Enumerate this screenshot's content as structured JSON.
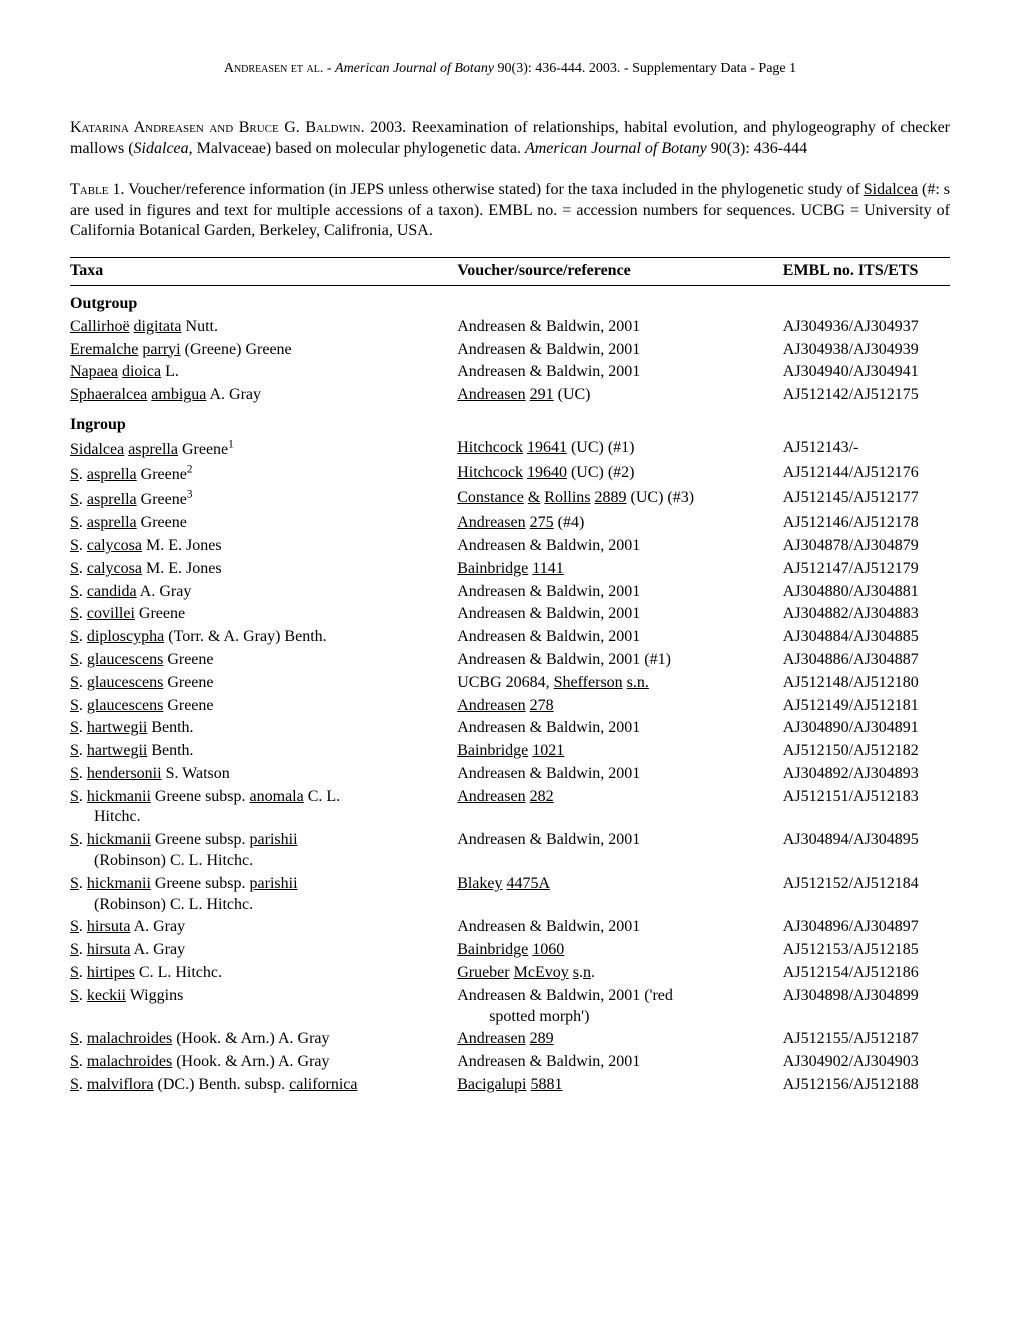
{
  "runningHeader": {
    "authors": "Andreasen et al.",
    "separator": " - ",
    "journal": "American Journal of Botany",
    "volume": " 90(3): 436-444. 2003. - Supplementary Data - Page 1"
  },
  "citation": {
    "authors": "Katarina Andreasen and Bruce G. Baldwin",
    "year": ".  2003.  Reexamination of relationships, habital evolution, and phylogeography of checker mallows (",
    "genus": "Sidalcea",
    "text2": ", Malvaceae) based on molecular phylogenetic data. ",
    "journal": "American Journal of Botany",
    "volume": " 90(3): 436-444"
  },
  "tableCaption": {
    "label": "Table",
    "text1": " 1. Voucher/reference information (in JEPS unless otherwise stated) for the taxa included in the phylogenetic study of ",
    "sidalcea": "Sidalcea",
    "text2": " (#: s are used in figures and text for multiple accessions of a taxon). EMBL no. = accession numbers for sequences. UCBG = University of California Botanical Garden, Berkeley, Califronia, USA."
  },
  "headers": {
    "col1": "Taxa",
    "col2": "Voucher/source/reference",
    "col3": "EMBL no. ITS/ETS"
  },
  "sections": {
    "outgroup": "Outgroup",
    "ingroup": "Ingroup"
  },
  "rows": [
    {
      "taxa_parts": [
        {
          "u": true,
          "t": "Callirhoë"
        },
        {
          "t": " "
        },
        {
          "u": true,
          "t": "digitata"
        },
        {
          "t": " Nutt."
        }
      ],
      "voucher": "Andreasen & Baldwin, 2001",
      "embl": "AJ304936/AJ304937"
    },
    {
      "taxa_parts": [
        {
          "u": true,
          "t": "Eremalche"
        },
        {
          "t": " "
        },
        {
          "u": true,
          "t": "parryi"
        },
        {
          "t": " (Greene) Greene"
        }
      ],
      "voucher": "Andreasen & Baldwin, 2001",
      "embl": "AJ304938/AJ304939"
    },
    {
      "taxa_parts": [
        {
          "u": true,
          "t": "Napaea"
        },
        {
          "t": " "
        },
        {
          "u": true,
          "t": "dioica"
        },
        {
          "t": " L."
        }
      ],
      "voucher": "Andreasen & Baldwin, 2001",
      "embl": "AJ304940/AJ304941"
    },
    {
      "taxa_parts": [
        {
          "u": true,
          "t": "Sphaeralcea"
        },
        {
          "t": " "
        },
        {
          "u": true,
          "t": "ambigua"
        },
        {
          "t": " A. Gray"
        }
      ],
      "voucher_parts": [
        {
          "u": true,
          "t": "Andreasen"
        },
        {
          "t": " "
        },
        {
          "u": true,
          "t": "291"
        },
        {
          "t": " (UC)"
        }
      ],
      "embl": "AJ512142/AJ512175"
    }
  ],
  "ingroupRows": [
    {
      "taxa_parts": [
        {
          "u": true,
          "t": "Sidalcea"
        },
        {
          "t": " "
        },
        {
          "u": true,
          "t": "asprella"
        },
        {
          "t": " Greene"
        },
        {
          "sup": "1"
        }
      ],
      "voucher_parts": [
        {
          "u": true,
          "t": "Hitchcock"
        },
        {
          "t": " "
        },
        {
          "u": true,
          "t": "19641"
        },
        {
          "t": " (UC) (#1)"
        }
      ],
      "embl": "AJ512143/-"
    },
    {
      "taxa_parts": [
        {
          "u": true,
          "t": "S"
        },
        {
          "t": ". "
        },
        {
          "u": true,
          "t": "asprella"
        },
        {
          "t": " Greene"
        },
        {
          "sup": "2"
        }
      ],
      "voucher_parts": [
        {
          "u": true,
          "t": "Hitchcock"
        },
        {
          "t": " "
        },
        {
          "u": true,
          "t": "19640"
        },
        {
          "t": " (UC) (#2)"
        }
      ],
      "embl": "AJ512144/AJ512176"
    },
    {
      "taxa_parts": [
        {
          "u": true,
          "t": "S"
        },
        {
          "t": ". "
        },
        {
          "u": true,
          "t": "asprella"
        },
        {
          "t": " Greene"
        },
        {
          "sup": "3"
        }
      ],
      "voucher_parts": [
        {
          "u": true,
          "t": "Constance"
        },
        {
          "t": " "
        },
        {
          "u": true,
          "t": "&"
        },
        {
          "t": " "
        },
        {
          "u": true,
          "t": "Rollins"
        },
        {
          "t": " "
        },
        {
          "u": true,
          "t": "2889"
        },
        {
          "t": " (UC) (#3)"
        }
      ],
      "embl": "AJ512145/AJ512177"
    },
    {
      "taxa_parts": [
        {
          "u": true,
          "t": "S"
        },
        {
          "t": ". "
        },
        {
          "u": true,
          "t": "asprella"
        },
        {
          "t": " Greene"
        }
      ],
      "voucher_parts": [
        {
          "u": true,
          "t": "Andreasen"
        },
        {
          "t": " "
        },
        {
          "u": true,
          "t": "275"
        },
        {
          "t": " (#4)"
        }
      ],
      "embl": "AJ512146/AJ512178"
    },
    {
      "taxa_parts": [
        {
          "u": true,
          "t": "S"
        },
        {
          "t": ". "
        },
        {
          "u": true,
          "t": "calycosa"
        },
        {
          "t": " M. E. Jones"
        }
      ],
      "voucher": "Andreasen & Baldwin, 2001",
      "embl": "AJ304878/AJ304879"
    },
    {
      "taxa_parts": [
        {
          "u": true,
          "t": "S"
        },
        {
          "t": ". "
        },
        {
          "u": true,
          "t": "calycosa"
        },
        {
          "t": " M. E. Jones"
        }
      ],
      "voucher_parts": [
        {
          "u": true,
          "t": "Bainbridge"
        },
        {
          "t": " "
        },
        {
          "u": true,
          "t": "1141"
        }
      ],
      "embl": "AJ512147/AJ512179"
    },
    {
      "taxa_parts": [
        {
          "u": true,
          "t": "S"
        },
        {
          "t": ". "
        },
        {
          "u": true,
          "t": "candida"
        },
        {
          "t": " A. Gray"
        }
      ],
      "voucher": "Andreasen & Baldwin, 2001",
      "embl": "AJ304880/AJ304881"
    },
    {
      "taxa_parts": [
        {
          "u": true,
          "t": "S"
        },
        {
          "t": ". "
        },
        {
          "u": true,
          "t": "covillei"
        },
        {
          "t": " Greene"
        }
      ],
      "voucher": "Andreasen & Baldwin, 2001",
      "embl": "AJ304882/AJ304883"
    },
    {
      "taxa_parts": [
        {
          "u": true,
          "t": "S"
        },
        {
          "t": ". "
        },
        {
          "u": true,
          "t": "diploscypha"
        },
        {
          "t": " (Torr. & A. Gray) Benth."
        }
      ],
      "voucher": "Andreasen & Baldwin, 2001",
      "embl": "AJ304884/AJ304885"
    },
    {
      "taxa_parts": [
        {
          "u": true,
          "t": "S"
        },
        {
          "t": ". "
        },
        {
          "u": true,
          "t": "glaucescens"
        },
        {
          "t": " Greene"
        }
      ],
      "voucher": "Andreasen & Baldwin, 2001 (#1)",
      "embl": "AJ304886/AJ304887"
    },
    {
      "taxa_parts": [
        {
          "u": true,
          "t": "S"
        },
        {
          "t": ". "
        },
        {
          "u": true,
          "t": "glaucescens"
        },
        {
          "t": " Greene"
        }
      ],
      "voucher_parts": [
        {
          "t": "UCBG 20684, "
        },
        {
          "u": true,
          "t": "Shefferson"
        },
        {
          "t": " "
        },
        {
          "u": true,
          "t": "s.n."
        }
      ],
      "embl": "AJ512148/AJ512180"
    },
    {
      "taxa_parts": [
        {
          "u": true,
          "t": "S"
        },
        {
          "t": ". "
        },
        {
          "u": true,
          "t": "glaucescens"
        },
        {
          "t": " Greene"
        }
      ],
      "voucher_parts": [
        {
          "u": true,
          "t": "Andreasen"
        },
        {
          "t": " "
        },
        {
          "u": true,
          "t": "278"
        }
      ],
      "embl": "AJ512149/AJ512181"
    },
    {
      "taxa_parts": [
        {
          "u": true,
          "t": "S"
        },
        {
          "t": ". "
        },
        {
          "u": true,
          "t": "hartwegii"
        },
        {
          "t": " Benth."
        }
      ],
      "voucher": "Andreasen & Baldwin, 2001",
      "embl": "AJ304890/AJ304891"
    },
    {
      "taxa_parts": [
        {
          "u": true,
          "t": "S"
        },
        {
          "t": ". "
        },
        {
          "u": true,
          "t": "hartwegii"
        },
        {
          "t": " Benth."
        }
      ],
      "voucher_parts": [
        {
          "u": true,
          "t": "Bainbridge"
        },
        {
          "t": " "
        },
        {
          "u": true,
          "t": "1021"
        }
      ],
      "embl": "AJ512150/AJ512182"
    },
    {
      "taxa_parts": [
        {
          "u": true,
          "t": "S"
        },
        {
          "t": ". "
        },
        {
          "u": true,
          "t": "hendersonii"
        },
        {
          "t": " S. Watson"
        }
      ],
      "voucher": "Andreasen & Baldwin, 2001",
      "embl": "AJ304892/AJ304893"
    },
    {
      "taxa_parts": [
        {
          "u": true,
          "t": "S"
        },
        {
          "t": ". "
        },
        {
          "u": true,
          "t": "hickmanii"
        },
        {
          "t": " Greene subsp. "
        },
        {
          "u": true,
          "t": "anomala"
        },
        {
          "t": " C. L."
        }
      ],
      "taxa_cont": "Hitchc.",
      "voucher_parts": [
        {
          "u": true,
          "t": "Andreasen"
        },
        {
          "t": " "
        },
        {
          "u": true,
          "t": "282"
        }
      ],
      "embl": "AJ512151/AJ512183"
    },
    {
      "taxa_parts": [
        {
          "u": true,
          "t": "S"
        },
        {
          "t": ". "
        },
        {
          "u": true,
          "t": "hickmanii"
        },
        {
          "t": " Greene subsp. "
        },
        {
          "u": true,
          "t": "parishii"
        }
      ],
      "taxa_cont": "(Robinson) C. L. Hitchc.",
      "voucher": "Andreasen & Baldwin, 2001",
      "embl": "AJ304894/AJ304895"
    },
    {
      "taxa_parts": [
        {
          "u": true,
          "t": "S"
        },
        {
          "t": ". "
        },
        {
          "u": true,
          "t": "hickmanii"
        },
        {
          "t": " Greene subsp. "
        },
        {
          "u": true,
          "t": "parishii"
        }
      ],
      "taxa_cont": "(Robinson) C. L. Hitchc.",
      "voucher_parts": [
        {
          "u": true,
          "t": "Blakey"
        },
        {
          "t": " "
        },
        {
          "u": true,
          "t": "4475A"
        }
      ],
      "embl": "AJ512152/AJ512184"
    },
    {
      "taxa_parts": [
        {
          "u": true,
          "t": "S"
        },
        {
          "t": ". "
        },
        {
          "u": true,
          "t": "hirsuta"
        },
        {
          "t": " A. Gray"
        }
      ],
      "voucher": "Andreasen & Baldwin, 2001",
      "embl": "AJ304896/AJ304897"
    },
    {
      "taxa_parts": [
        {
          "u": true,
          "t": "S"
        },
        {
          "t": ". "
        },
        {
          "u": true,
          "t": "hirsuta"
        },
        {
          "t": " A. Gray"
        }
      ],
      "voucher_parts": [
        {
          "u": true,
          "t": "Bainbridge"
        },
        {
          "t": " "
        },
        {
          "u": true,
          "t": "1060"
        }
      ],
      "embl": "AJ512153/AJ512185"
    },
    {
      "taxa_parts": [
        {
          "u": true,
          "t": "S"
        },
        {
          "t": ". "
        },
        {
          "u": true,
          "t": "hirtipes"
        },
        {
          "t": " C. L. Hitchc."
        }
      ],
      "voucher_parts": [
        {
          "u": true,
          "t": "Grueber"
        },
        {
          "t": " "
        },
        {
          "u": true,
          "t": "McEvoy"
        },
        {
          "t": " "
        },
        {
          "u": true,
          "t": "s"
        },
        {
          "t": "."
        },
        {
          "u": true,
          "t": "n"
        },
        {
          "t": "."
        }
      ],
      "embl": "AJ512154/AJ512186"
    },
    {
      "taxa_parts": [
        {
          "u": true,
          "t": "S"
        },
        {
          "t": ". "
        },
        {
          "u": true,
          "t": "keckii"
        },
        {
          "t": " Wiggins"
        }
      ],
      "voucher": "Andreasen & Baldwin, 2001 ('red",
      "voucher_cont": "spotted morph')",
      "embl": "AJ304898/AJ304899"
    },
    {
      "taxa_parts": [
        {
          "u": true,
          "t": "S"
        },
        {
          "t": ". "
        },
        {
          "u": true,
          "t": "malachroides"
        },
        {
          "t": " (Hook. & Arn.) A. Gray"
        }
      ],
      "voucher_parts": [
        {
          "u": true,
          "t": "Andreasen"
        },
        {
          "t": " "
        },
        {
          "u": true,
          "t": "289"
        }
      ],
      "embl": "AJ512155/AJ512187"
    },
    {
      "taxa_parts": [
        {
          "u": true,
          "t": "S"
        },
        {
          "t": ". "
        },
        {
          "u": true,
          "t": "malachroides"
        },
        {
          "t": " (Hook. & Arn.) A. Gray"
        }
      ],
      "voucher": "Andreasen & Baldwin, 2001",
      "embl": "AJ304902/AJ304903"
    },
    {
      "taxa_parts": [
        {
          "u": true,
          "t": "S"
        },
        {
          "t": ". "
        },
        {
          "u": true,
          "t": "malviflora"
        },
        {
          "t": " (DC.) Benth. subsp. "
        },
        {
          "u": true,
          "t": "californica"
        }
      ],
      "voucher_parts": [
        {
          "u": true,
          "t": "Bacigalupi"
        },
        {
          "t": " "
        },
        {
          "u": true,
          "t": "5881"
        }
      ],
      "embl": "AJ512156/AJ512188"
    }
  ]
}
